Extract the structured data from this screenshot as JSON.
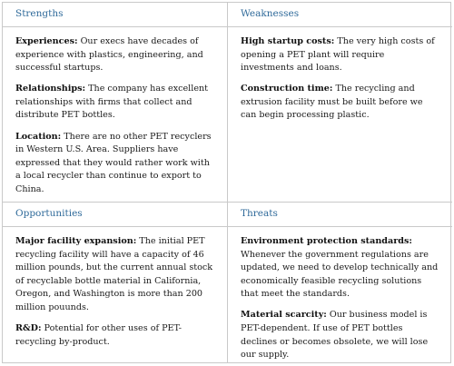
{
  "quadrants": {
    "strengths": {
      "title": "Strengths",
      "items": [
        {
          "label": "Experiences:",
          "text": " Our execs have decades of experience with plastics, engineering, and successful startups."
        },
        {
          "label": "Relationships:",
          "text": " The company has excellent relationships with firms that collect and distribute PET bottles."
        },
        {
          "label": "Location:",
          "text": " There are no other PET recyclers in Western U.S. Area. Suppliers have expressed that they would rather work with a local recycler than continue to export to China."
        }
      ]
    },
    "weaknesses": {
      "title": "Weaknesses",
      "items": [
        {
          "label": "High startup costs:",
          "text": " The very high costs of opening a PET plant will require investments and loans."
        },
        {
          "label": "Construction time:",
          "text": " The recycling and extrusion facility must be built before we can begin processing plastic."
        }
      ]
    },
    "opportunities": {
      "title": "Opportunities",
      "items": [
        {
          "label": "Major facility expansion:",
          "text": " The initial PET recycling facility will have a capacity of 46 million pounds, but the current annual stock of recyclable bottle material in California, Oregon, and Washington is more than 200 million pouunds."
        },
        {
          "label": "R&D:",
          "text": " Potential for other uses of PET-recycling by-product."
        }
      ]
    },
    "threats": {
      "title": "Threats",
      "items": [
        {
          "label": "Environment protection standards:",
          "text": " Whenever the government regulations are updated, we need to develop technically and economically feasible recycling solutions that meet the standards."
        },
        {
          "label": "Material scarcity:",
          "text": " Our business model is PET-dependent. If use of PET bottles declines or becomes obsolete, we will lose our supply."
        }
      ]
    }
  }
}
